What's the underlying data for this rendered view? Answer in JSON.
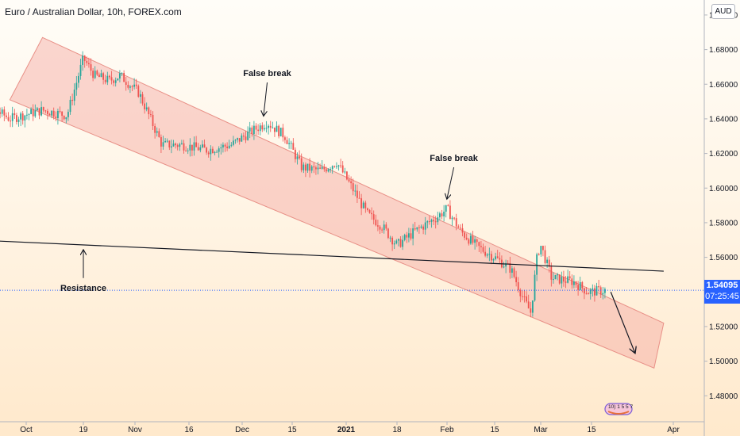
{
  "header": {
    "title": "Euro / Australian Dollar, 10h, FOREX.com",
    "currency": "AUD"
  },
  "price_tag": {
    "price": "1.54095",
    "countdown": "07:25:45"
  },
  "logo": {
    "text": "10) 1  5 5 7"
  },
  "colors": {
    "up": "#26a69a",
    "down": "#ef5350",
    "channel_fill": "#f4a6a0",
    "line": "#131722",
    "price_line": "#2962ff",
    "accent": "#2962ff"
  },
  "chart_data": {
    "type": "candlestick",
    "title": "Euro / Australian Dollar, 10h, FOREX.com",
    "ylim": [
      1.465,
      1.705
    ],
    "y_ticks": [
      "1.70000",
      "1.68000",
      "1.66000",
      "1.64000",
      "1.62000",
      "1.60000",
      "1.58000",
      "1.56000",
      "1.54000",
      "1.52000",
      "1.50000",
      "1.48000"
    ],
    "y_tick_values": [
      1.7,
      1.68,
      1.66,
      1.64,
      1.62,
      1.6,
      1.58,
      1.56,
      1.54,
      1.52,
      1.5,
      1.48
    ],
    "x_ticks": [
      "Oct",
      "19",
      "Nov",
      "16",
      "Dec",
      "15",
      "2021",
      "18",
      "Feb",
      "15",
      "Mar",
      "15",
      "Apr"
    ],
    "x_tick_dates": [
      "2020-10-12",
      "2020-10-19",
      "2020-11-02",
      "2020-11-16",
      "2020-12-01",
      "2020-12-15",
      "2021-01-01",
      "2021-01-18",
      "2021-02-01",
      "2021-02-15",
      "2021-03-01",
      "2021-03-15",
      "2021-04-01"
    ],
    "last_price": 1.54095,
    "close_path": [
      {
        "date": "2020-10-04",
        "close": 1.657
      },
      {
        "date": "2020-10-10",
        "close": 1.64
      },
      {
        "date": "2020-10-14",
        "close": 1.645
      },
      {
        "date": "2020-10-17",
        "close": 1.642
      },
      {
        "date": "2020-10-19",
        "close": 1.675
      },
      {
        "date": "2020-10-22",
        "close": 1.665
      },
      {
        "date": "2020-10-26",
        "close": 1.662
      },
      {
        "date": "2020-10-29",
        "close": 1.665
      },
      {
        "date": "2020-11-03",
        "close": 1.655
      },
      {
        "date": "2020-11-09",
        "close": 1.625
      },
      {
        "date": "2020-11-14",
        "close": 1.625
      },
      {
        "date": "2020-11-21",
        "close": 1.622
      },
      {
        "date": "2020-11-28",
        "close": 1.625
      },
      {
        "date": "2020-12-03",
        "close": 1.632
      },
      {
        "date": "2020-12-08",
        "close": 1.638
      },
      {
        "date": "2020-12-13",
        "close": 1.63
      },
      {
        "date": "2020-12-18",
        "close": 1.612
      },
      {
        "date": "2020-12-24",
        "close": 1.61
      },
      {
        "date": "2020-12-29",
        "close": 1.615
      },
      {
        "date": "2021-01-03",
        "close": 1.6
      },
      {
        "date": "2021-01-08",
        "close": 1.585
      },
      {
        "date": "2021-01-13",
        "close": 1.578
      },
      {
        "date": "2021-01-18",
        "close": 1.567
      },
      {
        "date": "2021-01-23",
        "close": 1.575
      },
      {
        "date": "2021-01-29",
        "close": 1.583
      },
      {
        "date": "2021-02-01",
        "close": 1.588
      },
      {
        "date": "2021-02-05",
        "close": 1.575
      },
      {
        "date": "2021-02-10",
        "close": 1.566
      },
      {
        "date": "2021-02-15",
        "close": 1.56
      },
      {
        "date": "2021-02-20",
        "close": 1.553
      },
      {
        "date": "2021-02-24",
        "close": 1.535
      },
      {
        "date": "2021-02-26",
        "close": 1.528
      },
      {
        "date": "2021-02-28",
        "close": 1.562
      },
      {
        "date": "2021-03-01",
        "close": 1.567
      },
      {
        "date": "2021-03-04",
        "close": 1.548
      },
      {
        "date": "2021-03-10",
        "close": 1.546
      },
      {
        "date": "2021-03-14",
        "close": 1.54
      },
      {
        "date": "2021-03-18",
        "close": 1.54095
      }
    ],
    "channel": {
      "upper": [
        {
          "date": "2020-10-14",
          "price": 1.687
        },
        {
          "date": "2021-03-30",
          "price": 1.522
        }
      ],
      "lower": [
        {
          "date": "2020-10-10",
          "price": 1.651
        },
        {
          "date": "2021-03-28",
          "price": 1.496
        }
      ]
    },
    "resistance_line": [
      {
        "date": "2020-10-01",
        "price": 1.571
      },
      {
        "date": "2021-03-30",
        "price": 1.552
      }
    ],
    "annotations": [
      {
        "text": "False break",
        "arrow_from": {
          "date": "2020-12-08",
          "price": 1.661
        },
        "arrow_to": {
          "date": "2020-12-07",
          "price": 1.642
        }
      },
      {
        "text": "False break",
        "arrow_from": {
          "date": "2021-02-03",
          "price": 1.612
        },
        "arrow_to": {
          "date": "2021-02-01",
          "price": 1.594
        }
      },
      {
        "text": "Resistance",
        "arrow_from": {
          "date": "2020-10-19",
          "price": 1.548
        },
        "arrow_to": {
          "date": "2020-10-19",
          "price": 1.564
        }
      }
    ],
    "projection_arrow": {
      "from": {
        "date": "2021-03-19",
        "price": 1.54
      },
      "to": {
        "date": "2021-03-24",
        "price": 1.505
      }
    }
  }
}
